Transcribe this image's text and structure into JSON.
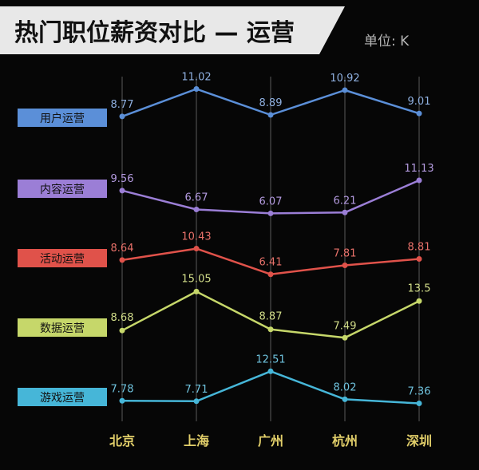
{
  "header": {
    "title": "热门职位薪资对比 — 运营",
    "unit": "单位: K"
  },
  "colors": {
    "background": "#060606",
    "banner": "#e8e8e8",
    "banner_text": "#111111",
    "grid": "#5a5a5a",
    "axis_label": "#e2cf6a",
    "unit_text": "#b5b5b5"
  },
  "chart_data": {
    "type": "line",
    "title": "热门职位薪资对比 — 运营",
    "categories": [
      "北京",
      "上海",
      "广州",
      "杭州",
      "深圳"
    ],
    "unit": "K",
    "grid": "vertical",
    "series": [
      {
        "name": "用户运营",
        "color": "#5b8fd8",
        "label_color": "#8fb0e0",
        "values": [
          8.77,
          11.02,
          8.89,
          10.92,
          9.01
        ]
      },
      {
        "name": "内容运营",
        "color": "#9b7ed6",
        "label_color": "#b49be0",
        "values": [
          9.56,
          6.67,
          6.07,
          6.21,
          11.13
        ]
      },
      {
        "name": "活动运营",
        "color": "#e0524a",
        "label_color": "#e8716a",
        "values": [
          8.64,
          10.43,
          6.41,
          7.81,
          8.81
        ]
      },
      {
        "name": "数据运营",
        "color": "#c6d76a",
        "label_color": "#d3de8a",
        "values": [
          8.68,
          15.05,
          8.87,
          7.49,
          13.5
        ]
      },
      {
        "name": "游戏运营",
        "color": "#46b6d8",
        "label_color": "#6fc3de",
        "values": [
          7.78,
          7.71,
          12.51,
          8.02,
          7.36
        ]
      }
    ]
  }
}
